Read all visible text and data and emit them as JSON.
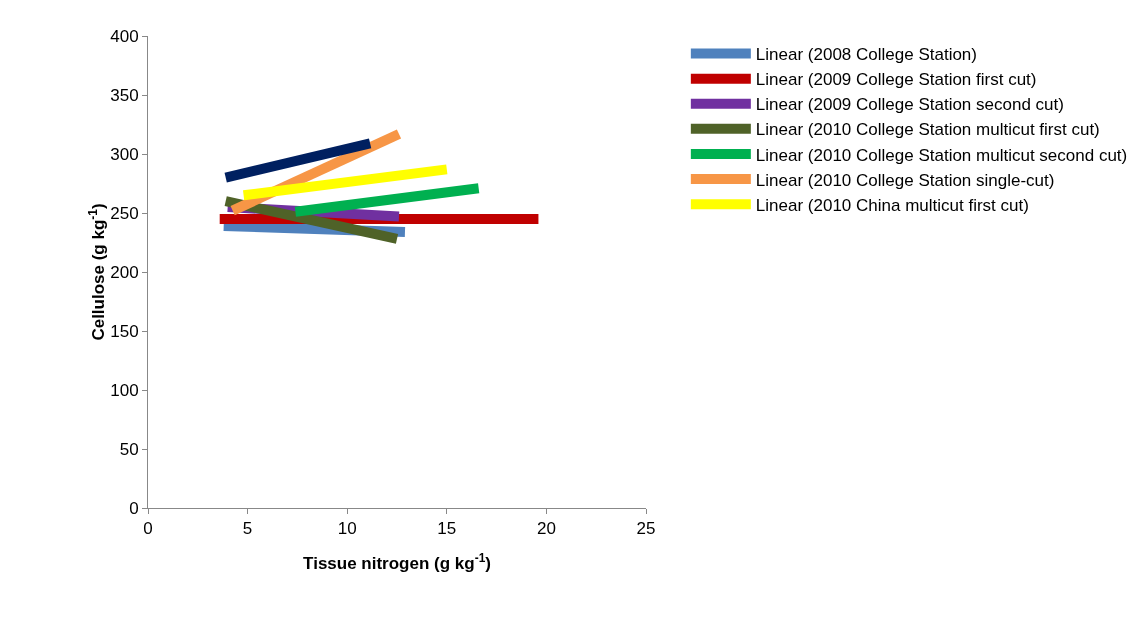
{
  "chart_data": {
    "type": "line",
    "xlabel": "Tissue nitrogen (g kg$^{-1}$)",
    "ylabel": "Cellulose (g kg$^{-1}$)",
    "xlim": [
      0,
      25
    ],
    "xticks": [
      0,
      5,
      10,
      15,
      20,
      25
    ],
    "ylim": [
      0,
      400
    ],
    "yticks": [
      0,
      50,
      100,
      150,
      200,
      250,
      300,
      350,
      400
    ],
    "grid": false,
    "legend": "right",
    "marker": "none",
    "line_style": "solid",
    "series": [
      {
        "name": "Linear (2008 College Station)",
        "color": "#4f81bd",
        "x": [
          3.8,
          12.9
        ],
        "values": [
          239,
          234
        ]
      },
      {
        "name": "Linear (2009 College Station first cut)",
        "color": "#c00000",
        "x": [
          3.6,
          19.6
        ],
        "values": [
          245,
          245
        ]
      },
      {
        "name": "Linear (2009 College Station second cut)",
        "color": "#7030a0",
        "x": [
          4,
          12.6
        ],
        "values": [
          255,
          247
        ]
      },
      {
        "name": "Linear (2010 College Station multicut first cut)",
        "color": "#4f6228",
        "x": [
          3.9,
          12.5
        ],
        "values": [
          260,
          228
        ]
      },
      {
        "name": "Linear (2010 College Station multicut second cut)",
        "color": "#00b050",
        "x": [
          7.4,
          16.6
        ],
        "values": [
          251,
          271
        ]
      },
      {
        "name": "Linear (2010 College Station single-cut)",
        "color": "#f79646",
        "x": [
          4.25,
          12.6
        ],
        "values": [
          252,
          317
        ]
      },
      {
        "name": "Linear (2010 China multicut first cut)",
        "color": "#ffff00",
        "x": [
          4.8,
          15
        ],
        "values": [
          265,
          287
        ]
      },
      {
        "color": "#002060",
        "x": [
          3.9,
          11.15
        ],
        "values": [
          280,
          309
        ]
      }
    ]
  }
}
